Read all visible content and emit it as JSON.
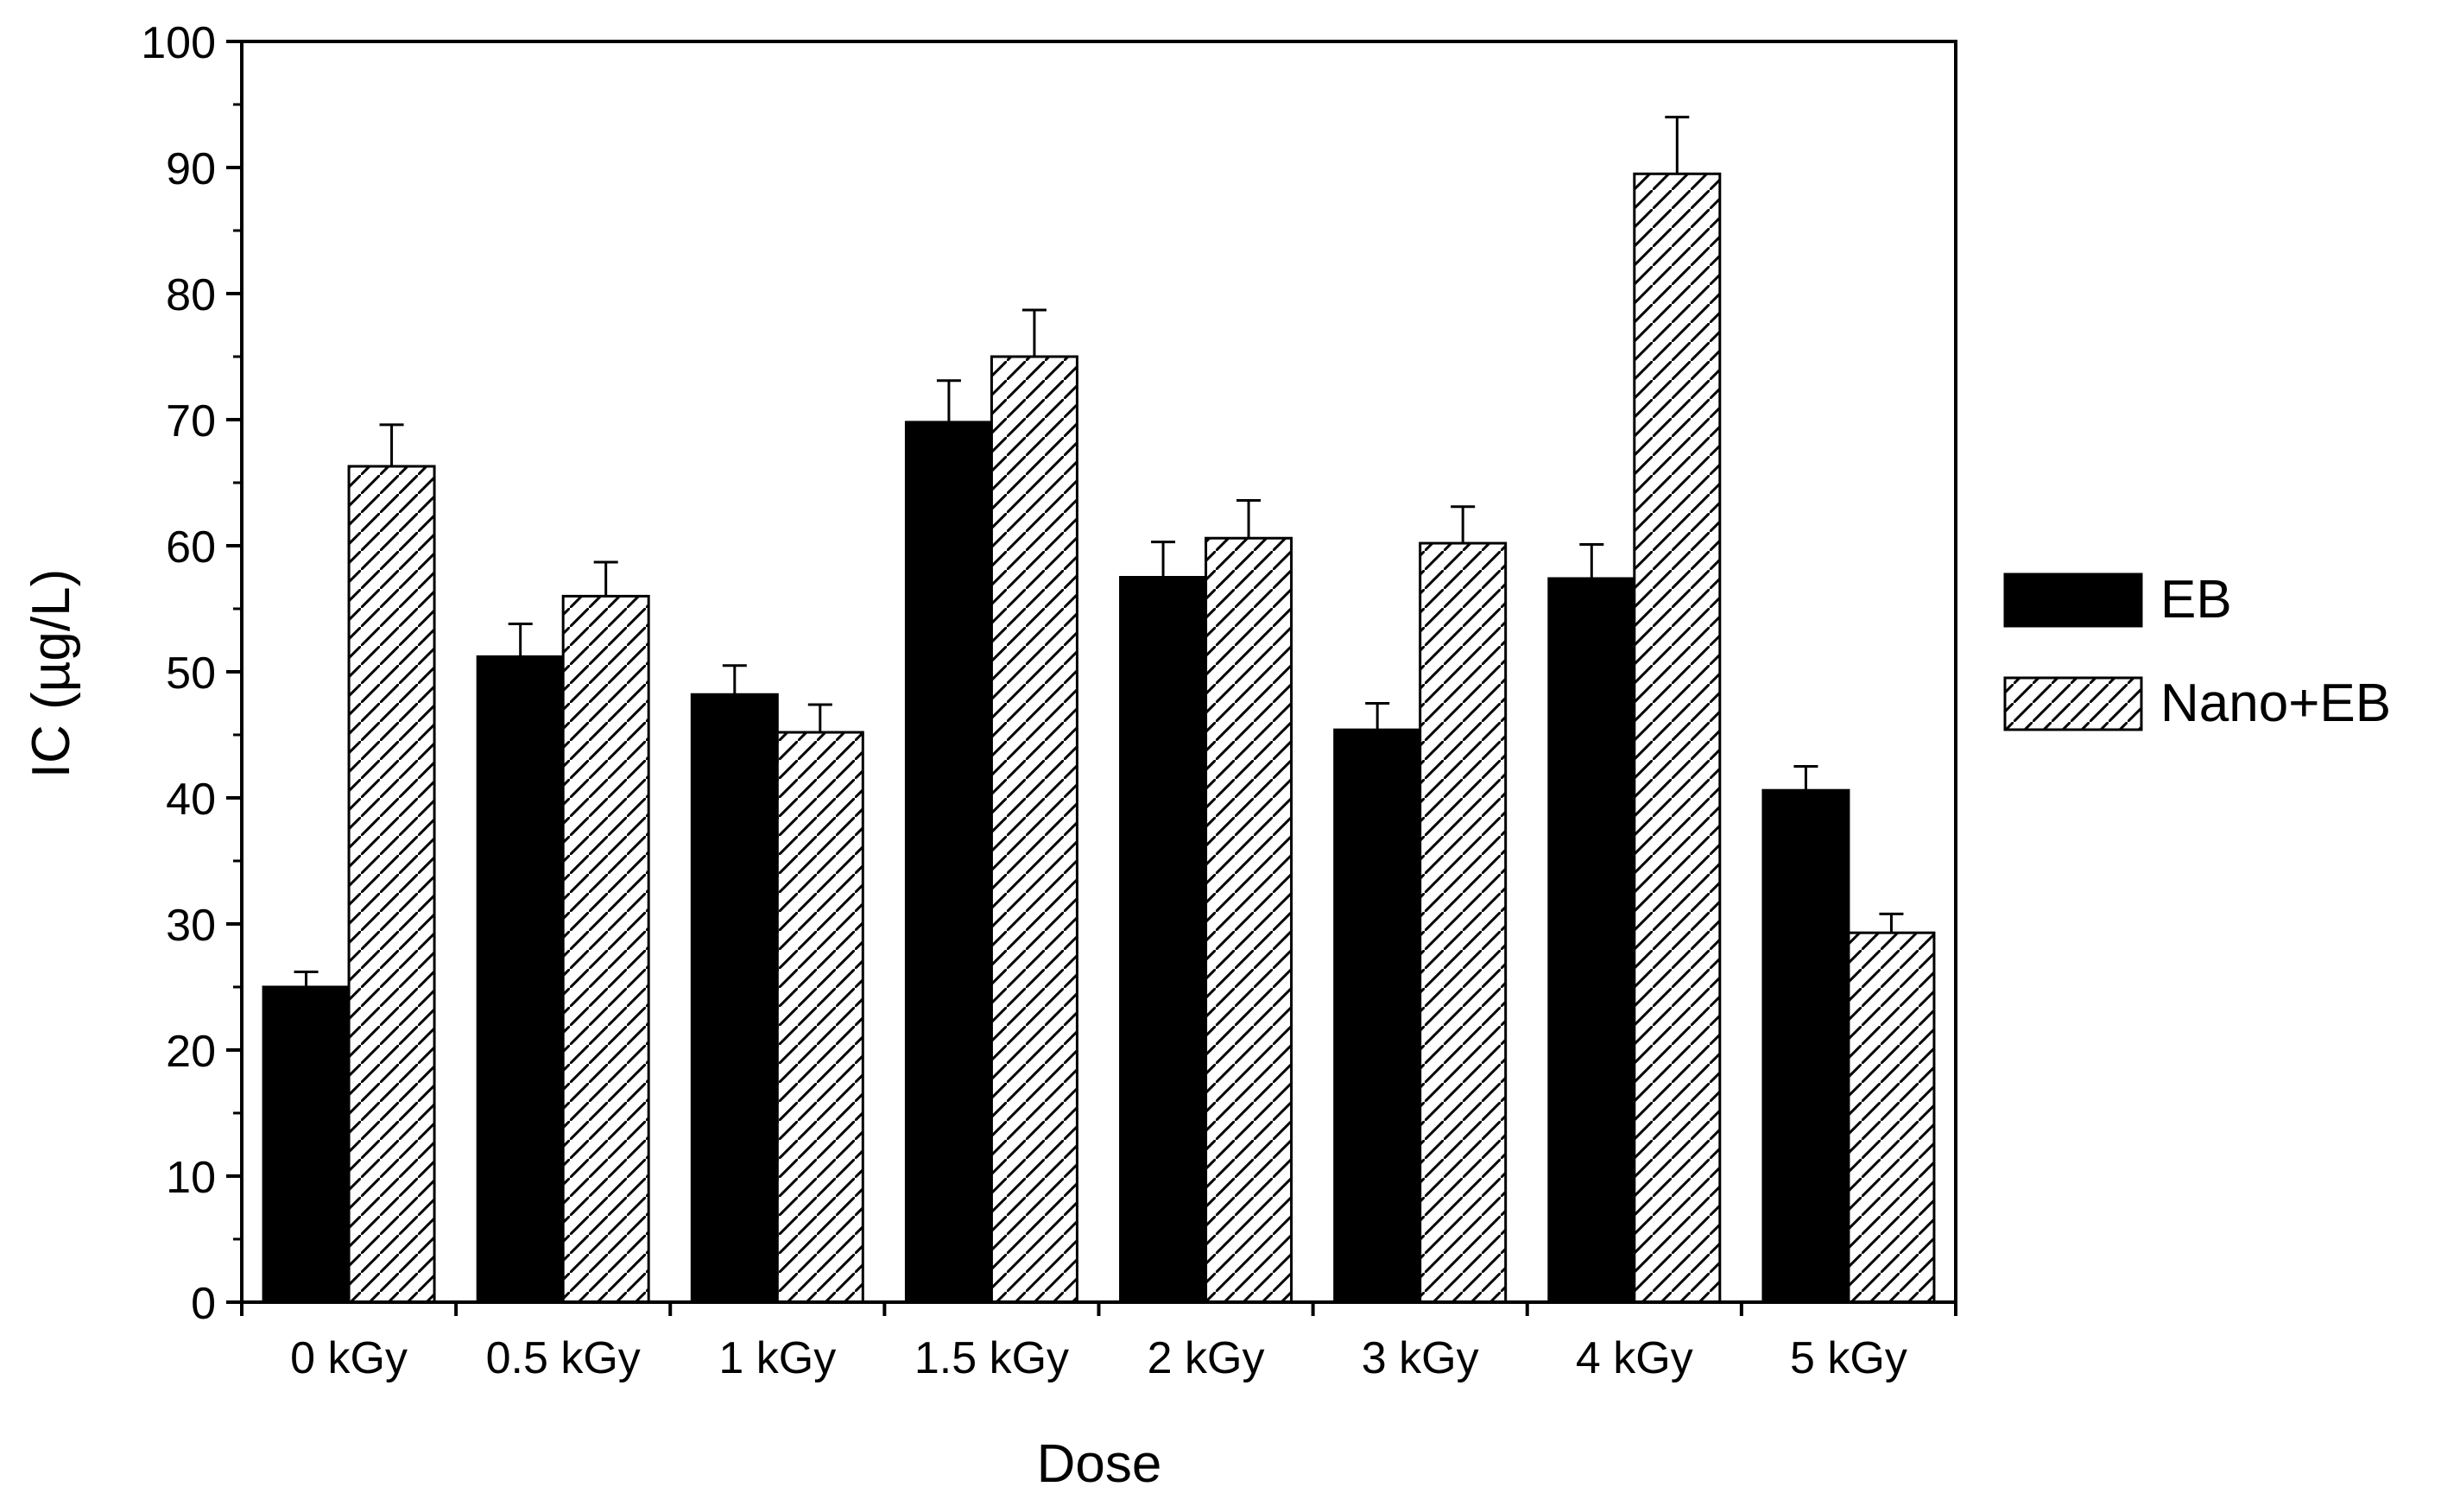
{
  "chart_data": {
    "type": "bar",
    "title": "",
    "xlabel": "Dose",
    "ylabel": "IC (µg/L)",
    "ylim": [
      0,
      100
    ],
    "yticks": [
      0,
      10,
      20,
      30,
      40,
      50,
      60,
      70,
      80,
      90,
      100
    ],
    "categories": [
      "0 kGy",
      "0.5 kGy",
      "1 kGy",
      "1.5 kGy",
      "2 kGy",
      "3 kGy",
      "4 kGy",
      "5 kGy"
    ],
    "series": [
      {
        "name": "EB",
        "fill": "solid",
        "color": "#000000",
        "values": [
          25.0,
          51.2,
          48.2,
          69.8,
          57.5,
          45.4,
          57.4,
          40.6
        ],
        "errors": [
          1.2,
          2.6,
          2.3,
          3.3,
          2.8,
          2.1,
          2.7,
          1.9
        ]
      },
      {
        "name": "Nano+EB",
        "fill": "hatched",
        "color": "#ffffff",
        "values": [
          66.3,
          56.0,
          45.2,
          75.0,
          60.6,
          60.2,
          89.5,
          29.3
        ],
        "errors": [
          3.3,
          2.7,
          2.2,
          3.7,
          3.0,
          2.9,
          4.5,
          1.5
        ]
      }
    ],
    "grid": false,
    "legend_position": "right"
  }
}
